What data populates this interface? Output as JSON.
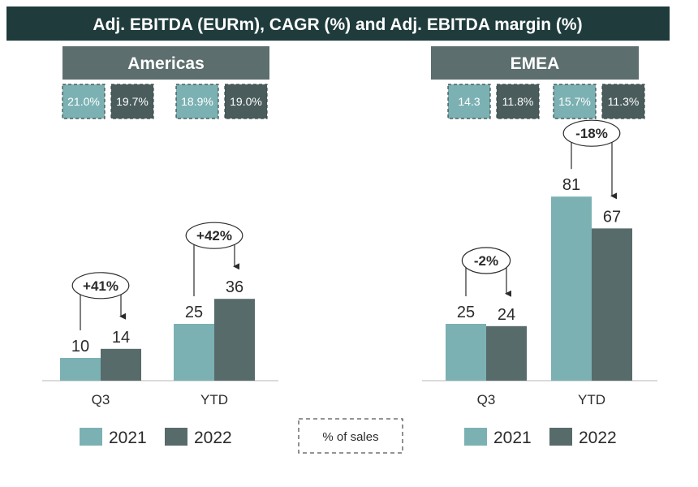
{
  "title": "Adj. EBITDA (EURm), CAGR (%) and Adj. EBITDA margin (%)",
  "colors": {
    "header_bg": "#1f3b3c",
    "panel_bg": "#5c6e6e",
    "series_2021": "#7cb1b3",
    "series_2022": "#586b6b",
    "margin_2022_bg": "#4a5c5c"
  },
  "chart_data": [
    {
      "type": "bar",
      "title": "Americas",
      "categories": [
        "Q3",
        "YTD"
      ],
      "series": [
        {
          "name": "2021",
          "values": [
            10,
            25
          ]
        },
        {
          "name": "2022",
          "values": [
            14,
            36
          ]
        }
      ],
      "value_labels": {
        "2021": [
          "10",
          "25"
        ],
        "2022": [
          "14",
          "36"
        ]
      },
      "changes": [
        "+41%",
        "+42%"
      ],
      "margins": [
        [
          "21.0%",
          "19.7%"
        ],
        [
          "18.9%",
          "19.0%"
        ]
      ],
      "xlabel": "",
      "ylabel": "",
      "ylim": [
        0,
        90
      ],
      "legend": [
        "2021",
        "2022"
      ],
      "legend_position": "bottom"
    },
    {
      "type": "bar",
      "title": "EMEA",
      "categories": [
        "Q3",
        "YTD"
      ],
      "series": [
        {
          "name": "2021",
          "values": [
            25,
            81
          ]
        },
        {
          "name": "2022",
          "values": [
            24,
            67
          ]
        }
      ],
      "value_labels": {
        "2021": [
          "25",
          "81"
        ],
        "2022": [
          "24",
          "67"
        ]
      },
      "changes": [
        "-2%",
        "-18%"
      ],
      "margins": [
        [
          "14.3",
          "11.8%"
        ],
        [
          "15.7%",
          "11.3%"
        ]
      ],
      "xlabel": "",
      "ylabel": "",
      "ylim": [
        0,
        90
      ],
      "legend": [
        "2021",
        "2022"
      ],
      "legend_position": "bottom"
    }
  ],
  "note": "% of sales"
}
